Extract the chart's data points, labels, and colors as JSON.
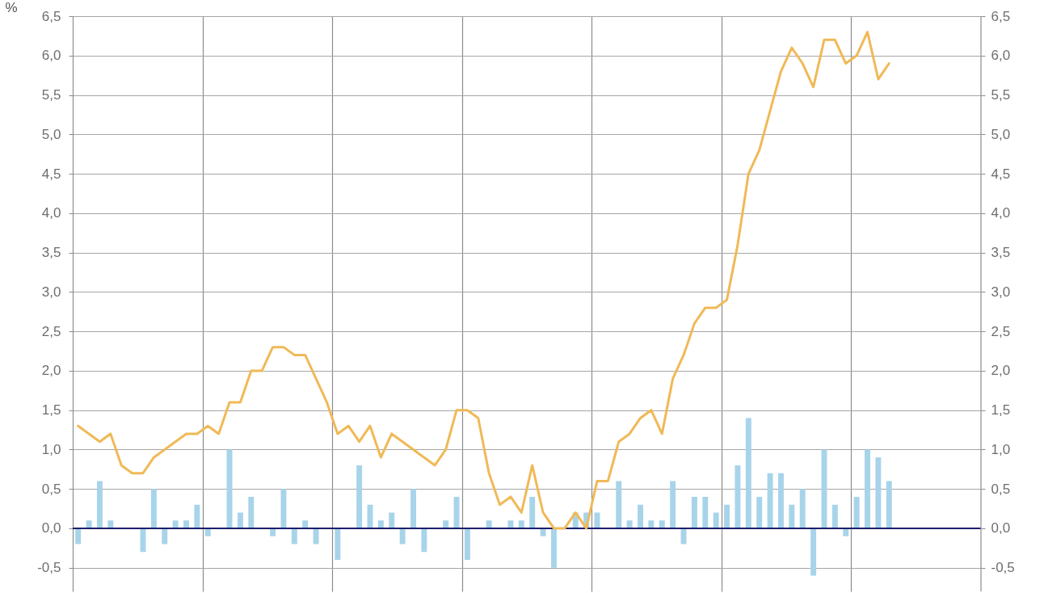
{
  "chart_data": {
    "type": "bar",
    "ylabel": "%",
    "categories": [
      null,
      null,
      null,
      null,
      null,
      null,
      null,
      null,
      null,
      null,
      null,
      null,
      null,
      null,
      null,
      null,
      null,
      null,
      null,
      null,
      null,
      null,
      null,
      null,
      null,
      null,
      null,
      null,
      null,
      null,
      null,
      null,
      null,
      null,
      null,
      null,
      null,
      null,
      null,
      null,
      null,
      null,
      null,
      null,
      null,
      null,
      null,
      null,
      null,
      null,
      null,
      null,
      null,
      null,
      null,
      null,
      null,
      null,
      null,
      null,
      null,
      null,
      null,
      null,
      null,
      null,
      null,
      null,
      null,
      null,
      null,
      null,
      null,
      null,
      null,
      null,
      null,
      null,
      null,
      null,
      null,
      null,
      null,
      null
    ],
    "series": [
      {
        "color": "#a8d4ea",
        "values": [
          -0.2,
          0.1,
          0.6,
          0.1,
          0,
          0,
          -0.3,
          0.5,
          -0.2,
          0.1,
          0.1,
          0.3,
          -0.1,
          0,
          1.0,
          0.2,
          0.4,
          0,
          -0.1,
          0.5,
          -0.2,
          0.1,
          -0.2,
          0,
          -0.4,
          0,
          0.8,
          0.3,
          0.1,
          0.2,
          -0.2,
          0.5,
          -0.3,
          0,
          0.1,
          0.4,
          -0.4,
          0,
          0.1,
          0,
          0.1,
          0.1,
          0.4,
          -0.1,
          -0.5,
          0,
          0.2,
          0.2,
          0.2,
          0,
          0.6,
          0.1,
          0.3,
          0.1,
          0.1,
          0.6,
          -0.2,
          0.4,
          0.4,
          0.2,
          0.3,
          0.8,
          1.4,
          0.4,
          0.7,
          0.7,
          0.3,
          0.5,
          -0.6,
          1.0,
          0.3,
          -0.1,
          0.4,
          1.0,
          0.9,
          0.6,
          null,
          null,
          null,
          null,
          null,
          null,
          null,
          null
        ]
      },
      {
        "type": "line",
        "color": "#f0b957",
        "values": [
          1.3,
          1.2,
          1.1,
          1.2,
          0.8,
          0.7,
          0.7,
          0.9,
          1.0,
          1.1,
          1.2,
          1.2,
          1.3,
          1.2,
          1.6,
          1.6,
          2.0,
          2.0,
          2.3,
          2.3,
          2.2,
          2.2,
          1.9,
          1.6,
          1.2,
          1.3,
          1.1,
          1.3,
          0.9,
          1.2,
          1.1,
          1.0,
          0.9,
          0.8,
          1.0,
          1.5,
          1.5,
          1.4,
          0.7,
          0.3,
          0.4,
          0.2,
          0.8,
          0.2,
          0.0,
          0.0,
          0.2,
          0.0,
          0.6,
          0.6,
          1.1,
          1.2,
          1.4,
          1.5,
          1.2,
          1.9,
          2.2,
          2.6,
          2.8,
          2.8,
          2.9,
          3.6,
          4.5,
          4.8,
          5.3,
          5.8,
          6.1,
          5.9,
          5.6,
          6.2,
          6.2,
          5.9,
          6.0,
          6.3,
          5.7,
          5.9,
          null,
          null,
          null,
          null,
          null,
          null,
          null,
          null
        ]
      }
    ],
    "ylim": [
      -0.8,
      6.5
    ],
    "yticks": [
      {
        "value": -0.5,
        "label": "-0,5"
      },
      {
        "value": 0,
        "label": "0,0"
      },
      {
        "value": 0.5,
        "label": "0,5"
      },
      {
        "value": 1,
        "label": "1,0"
      },
      {
        "value": 1.5,
        "label": "1,5"
      },
      {
        "value": 2,
        "label": "2,0"
      },
      {
        "value": 2.5,
        "label": "2,5"
      },
      {
        "value": 3,
        "label": "3,0"
      },
      {
        "value": 3.5,
        "label": "3,5"
      },
      {
        "value": 4,
        "label": "4,0"
      },
      {
        "value": 4.5,
        "label": "4,5"
      },
      {
        "value": 5,
        "label": "5,0"
      },
      {
        "value": 5.5,
        "label": "5,5"
      },
      {
        "value": 6,
        "label": "6,0"
      },
      {
        "value": 6.5,
        "label": "6,5"
      }
    ],
    "y2lim": [
      -0.8,
      6.5
    ],
    "y2ticks": [
      {
        "value": -0.5,
        "label": "-0,5"
      },
      {
        "value": 0,
        "label": "0,0"
      },
      {
        "value": 0.5,
        "label": "0,5"
      },
      {
        "value": 1,
        "label": "1,0"
      },
      {
        "value": 1.5,
        "label": "1,5"
      },
      {
        "value": 2,
        "label": "2,0"
      },
      {
        "value": 2.5,
        "label": "2,5"
      },
      {
        "value": 3,
        "label": "3,0"
      },
      {
        "value": 3.5,
        "label": "3,5"
      },
      {
        "value": 4,
        "label": "4,0"
      },
      {
        "value": 4.5,
        "label": "4,5"
      },
      {
        "value": 5,
        "label": "5,0"
      },
      {
        "value": 5.5,
        "label": "5,5"
      },
      {
        "value": 6,
        "label": "6,0"
      },
      {
        "value": 6.5,
        "label": "6,5"
      }
    ],
    "grid": true,
    "ref_lines": [
      {
        "axis": "y",
        "value": 0,
        "color": "#1b1f6e"
      }
    ],
    "tick_labels": "y"
  }
}
